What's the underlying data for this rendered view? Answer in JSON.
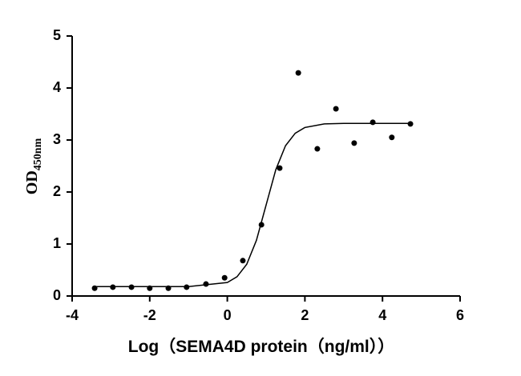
{
  "chart_data": {
    "type": "scatter",
    "xlabel": "Log（SEMA4D protein（ng/ml））",
    "ylabel": "OD",
    "ylabel_subscript": "450nm",
    "xlim": [
      -4,
      6
    ],
    "xticks": [
      -4,
      -2,
      0,
      2,
      4,
      6
    ],
    "ylim": [
      0,
      5
    ],
    "yticks": [
      0,
      1,
      2,
      3,
      4,
      5
    ],
    "series": [
      {
        "mode": "markers",
        "color": "#000000",
        "x": [
          -3.42,
          -2.95,
          -2.47,
          -2.0,
          -1.52,
          -1.05,
          -0.55,
          -0.07,
          0.4,
          0.88,
          1.35,
          1.83,
          2.32,
          2.8,
          3.27,
          3.75,
          4.24,
          4.72
        ],
        "values": [
          0.15,
          0.17,
          0.17,
          0.15,
          0.15,
          0.17,
          0.23,
          0.35,
          0.68,
          1.37,
          2.46,
          4.29,
          2.83,
          3.6,
          2.94,
          3.34,
          3.05,
          3.31
        ]
      },
      {
        "mode": "line",
        "color": "#000000",
        "x": [
          -3.42,
          -1,
          0,
          0.25,
          0.5,
          0.75,
          1,
          1.25,
          1.5,
          1.75,
          2,
          2.5,
          3,
          4.72
        ],
        "values": [
          0.18,
          0.18,
          0.26,
          0.37,
          0.61,
          1.07,
          1.75,
          2.43,
          2.89,
          3.13,
          3.24,
          3.31,
          3.32,
          3.32
        ]
      }
    ]
  }
}
